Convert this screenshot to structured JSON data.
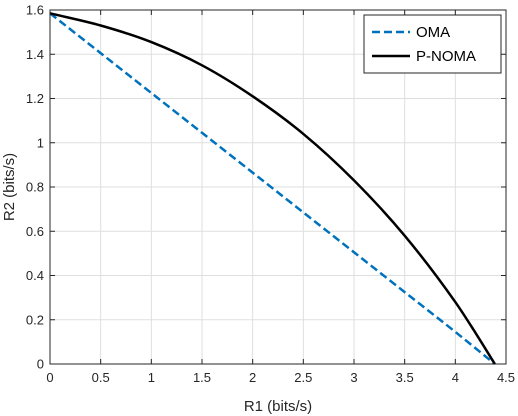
{
  "chart_data": {
    "type": "line",
    "xlabel": "R1 (bits/s)",
    "ylabel": "R2 (bits/s)",
    "xlim": [
      0,
      4.5
    ],
    "ylim": [
      0,
      1.6
    ],
    "xticks": [
      0,
      0.5,
      1,
      1.5,
      2,
      2.5,
      3,
      3.5,
      4,
      4.5
    ],
    "yticks": [
      0,
      0.2,
      0.4,
      0.6,
      0.8,
      1,
      1.2,
      1.4,
      1.6
    ],
    "xtick_labels": [
      "0",
      "0.5",
      "1",
      "1.5",
      "2",
      "2.5",
      "3",
      "3.5",
      "4",
      "4.5"
    ],
    "ytick_labels": [
      "0",
      "0.2",
      "0.4",
      "0.6",
      "0.8",
      "1",
      "1.2",
      "1.4",
      "1.6"
    ],
    "grid": true,
    "legend_position": "top-right",
    "series": [
      {
        "name": "OMA",
        "style": "dashed",
        "color": "#0072BD",
        "x": [
          0,
          0.5,
          1,
          1.5,
          2,
          2.5,
          3,
          3.5,
          4,
          4.39
        ],
        "y": [
          1.585,
          1.405,
          1.225,
          1.045,
          0.865,
          0.685,
          0.505,
          0.325,
          0.145,
          0
        ]
      },
      {
        "name": "P-NOMA",
        "style": "solid",
        "color": "#000000",
        "x": [
          0,
          0.5,
          1,
          1.5,
          2,
          2.5,
          3,
          3.5,
          4,
          4.2,
          4.39
        ],
        "y": [
          1.585,
          1.53,
          1.455,
          1.35,
          1.21,
          1.04,
          0.83,
          0.58,
          0.28,
          0.14,
          0
        ]
      }
    ]
  }
}
